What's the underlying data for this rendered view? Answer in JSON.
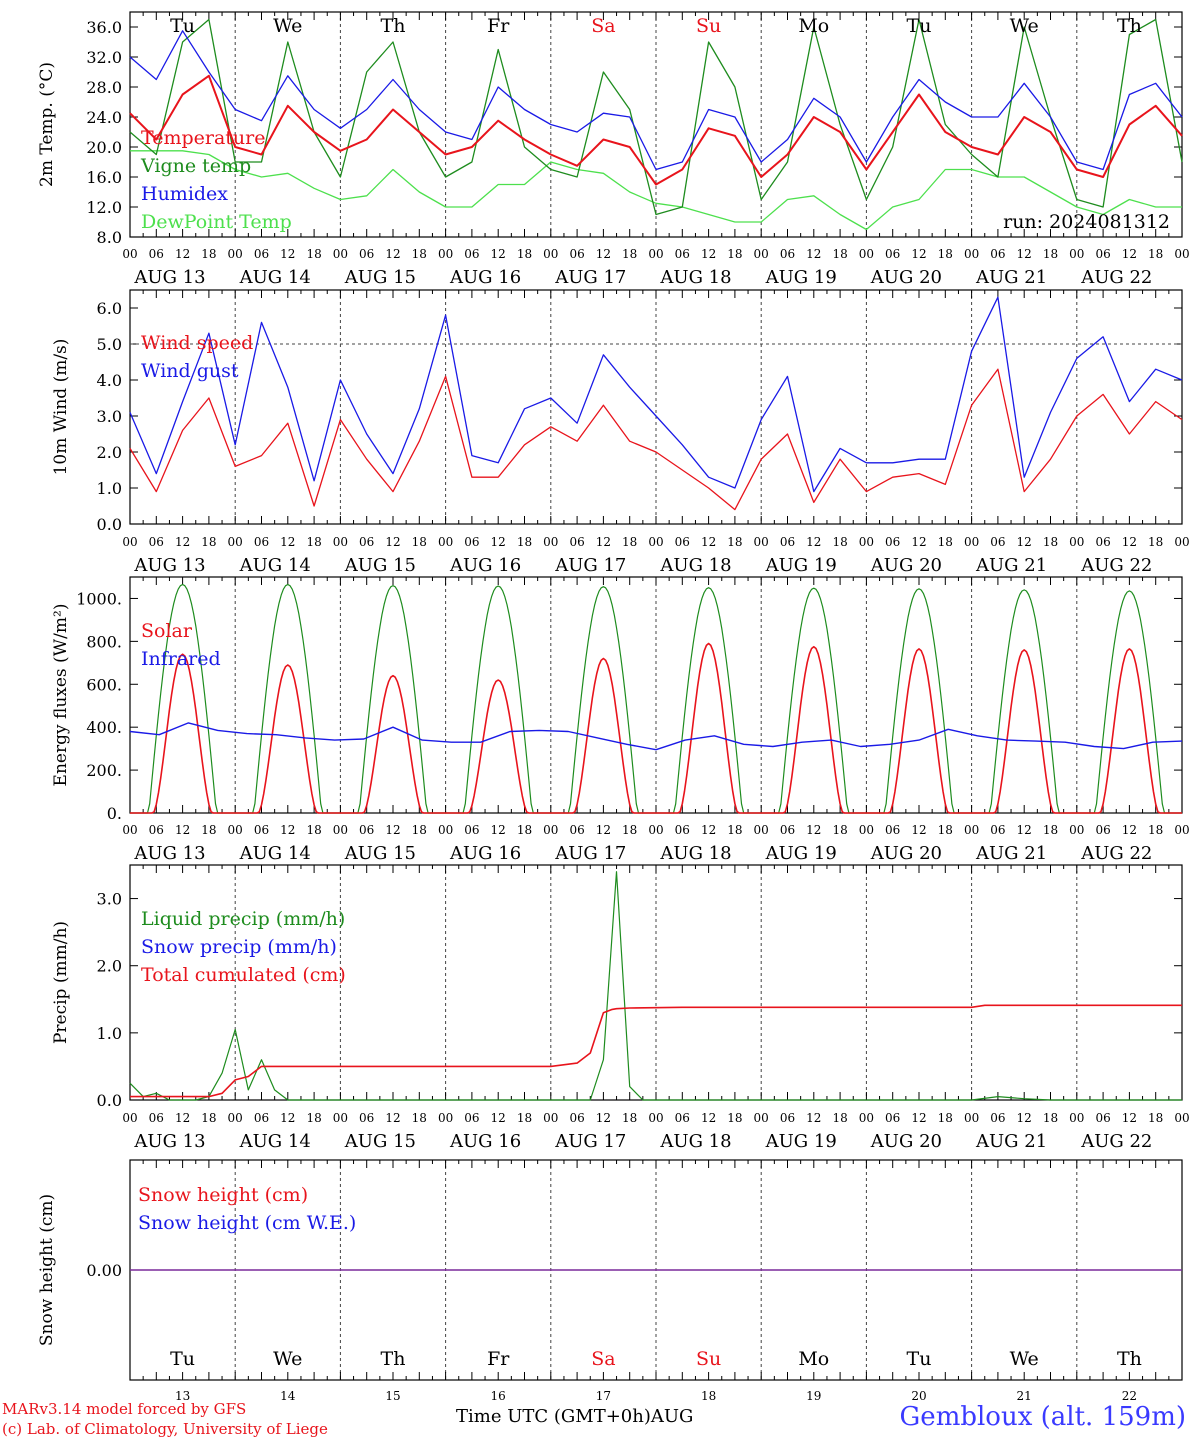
{
  "colors": {
    "red": "#e8141c",
    "green": "#1e8c1e",
    "blue": "#1a1ae6",
    "light_green": "#4de04d",
    "purple": "#7a2a9a",
    "axis": "#000000",
    "grid": "#444444"
  },
  "day_abbrev": [
    "Tu",
    "We",
    "Th",
    "Fr",
    "Sa",
    "Su",
    "Mo",
    "Tu",
    "We",
    "Th"
  ],
  "weekend_flags": [
    false,
    false,
    false,
    false,
    true,
    true,
    false,
    false,
    false,
    false
  ],
  "date_labels": [
    "AUG 13",
    "AUG 14",
    "AUG 15",
    "AUG 16",
    "AUG 17",
    "AUG 18",
    "AUG 19",
    "AUG 20",
    "AUG 21",
    "AUG 22"
  ],
  "hour_ticks": [
    "00",
    "06",
    "12",
    "18"
  ],
  "hour_end": "00",
  "bottom_day_numbers": [
    "13",
    "14",
    "15",
    "16",
    "17",
    "18",
    "19",
    "20",
    "21",
    "22"
  ],
  "footer": {
    "model_line": "MARv3.14 model forced by GFS",
    "lab_line": "(c) Lab. of Climatology, University of Liege",
    "axis_title": "Time UTC (GMT+0h)",
    "month": "AUG",
    "station": "Gembloux (alt. 159m)"
  },
  "chart_data": [
    {
      "type": "line",
      "ylabel": "2m Temp. (°C)",
      "ylim": [
        8,
        38
      ],
      "yticks": [
        "8.0",
        "12.0",
        "16.0",
        "20.0",
        "24.0",
        "28.0",
        "32.0",
        "36.0"
      ],
      "ytick_values": [
        8,
        12,
        16,
        20,
        24,
        28,
        32,
        36
      ],
      "annotation": "run: 2024081312",
      "x_hours": [
        0,
        6,
        12,
        18,
        24,
        30,
        36,
        42,
        48,
        54,
        60,
        66,
        72,
        78,
        84,
        90,
        96,
        102,
        108,
        114,
        120,
        126,
        132,
        138,
        144,
        150,
        156,
        162,
        168,
        174,
        180,
        186,
        192,
        198,
        204,
        210,
        216,
        222,
        228,
        234,
        240
      ],
      "series": [
        {
          "name": "Temperature",
          "color": "red",
          "values": [
            24.5,
            21,
            27,
            29.5,
            20,
            19,
            25.5,
            22,
            19.5,
            21,
            25,
            22,
            19,
            20,
            23.5,
            21,
            19,
            17.5,
            21,
            20,
            15,
            17,
            22.5,
            21.5,
            16,
            19,
            24,
            22,
            17,
            22,
            27,
            22,
            20,
            19,
            24,
            22,
            17,
            16,
            23,
            25.5,
            21.5
          ]
        },
        {
          "name": "Vigne temp",
          "color": "green",
          "values": [
            22,
            19,
            34,
            37,
            18,
            18,
            34,
            22,
            16,
            30,
            34,
            22,
            16,
            18,
            33,
            20,
            17,
            16,
            30,
            25,
            11,
            12,
            34,
            28,
            13,
            18,
            36,
            23,
            13,
            20,
            37,
            23,
            19,
            16,
            36,
            24,
            13,
            12,
            35,
            37,
            18
          ]
        },
        {
          "name": "Humidex",
          "color": "blue",
          "values": [
            32,
            29,
            35.5,
            30,
            25,
            23.5,
            29.5,
            25,
            22.5,
            25,
            29,
            25,
            22,
            21,
            28,
            25,
            23,
            22,
            24.5,
            24,
            17,
            18,
            25,
            24,
            18,
            21,
            26.5,
            24,
            18,
            24,
            29,
            26,
            24,
            24,
            28.5,
            24,
            18,
            17,
            27,
            28.5,
            24
          ]
        },
        {
          "name": "DewPoint Temp",
          "color": "light_green",
          "values": [
            19.5,
            19.5,
            19.5,
            19,
            17,
            16,
            16.5,
            14.5,
            13,
            13.5,
            17,
            14,
            12,
            12,
            15,
            15,
            18,
            17,
            16.5,
            14,
            12.5,
            12,
            11,
            10,
            10,
            13,
            13.5,
            11,
            9,
            12,
            13,
            17,
            17,
            16,
            16,
            14,
            12,
            11,
            13,
            12,
            12
          ]
        }
      ]
    },
    {
      "type": "line",
      "ylabel": "10m Wind (m/s)",
      "ylim": [
        0,
        6.5
      ],
      "yticks": [
        "0.0",
        "1.0",
        "2.0",
        "3.0",
        "4.0",
        "5.0",
        "6.0"
      ],
      "ytick_values": [
        0,
        1,
        2,
        3,
        4,
        5,
        6
      ],
      "ref_line": 5.0,
      "x_hours": [
        0,
        6,
        12,
        18,
        24,
        30,
        36,
        42,
        48,
        54,
        60,
        66,
        72,
        78,
        84,
        90,
        96,
        102,
        108,
        114,
        120,
        126,
        132,
        138,
        144,
        150,
        156,
        162,
        168,
        174,
        180,
        186,
        192,
        198,
        204,
        210,
        216,
        222,
        228,
        234,
        240
      ],
      "series": [
        {
          "name": "Wind speed",
          "color": "red",
          "values": [
            2.1,
            0.9,
            2.6,
            3.5,
            1.6,
            1.9,
            2.8,
            0.5,
            2.9,
            1.8,
            0.9,
            2.3,
            4.1,
            1.3,
            1.3,
            2.2,
            2.7,
            2.3,
            3.3,
            2.3,
            2.0,
            1.5,
            1.0,
            0.4,
            1.8,
            2.5,
            0.6,
            1.8,
            0.9,
            1.3,
            1.4,
            1.1,
            3.3,
            4.3,
            0.9,
            1.8,
            3.0,
            3.6,
            2.5,
            3.4,
            2.9
          ]
        },
        {
          "name": "Wind gust",
          "color": "blue",
          "values": [
            3.1,
            1.4,
            3.4,
            5.3,
            2.2,
            5.6,
            3.8,
            1.2,
            4.0,
            2.5,
            1.4,
            3.2,
            5.8,
            1.9,
            1.7,
            3.2,
            3.5,
            2.8,
            4.7,
            3.8,
            3.0,
            2.2,
            1.3,
            1.0,
            2.9,
            4.1,
            0.9,
            2.1,
            1.7,
            1.7,
            1.8,
            1.8,
            4.8,
            6.3,
            1.3,
            3.1,
            4.6,
            5.2,
            3.4,
            4.3,
            4.0
          ]
        }
      ]
    },
    {
      "type": "line",
      "ylabel": "Energy fluxes (W/m²)",
      "ylim": [
        0,
        1100
      ],
      "yticks": [
        "0.",
        "200.",
        "400.",
        "600.",
        "800.",
        "1000."
      ],
      "ytick_values": [
        0,
        200,
        400,
        600,
        800,
        1000
      ],
      "diurnal": {
        "toa_peaks": [
          1065,
          1065,
          1060,
          1058,
          1055,
          1050,
          1048,
          1045,
          1040,
          1035
        ],
        "solar_peaks": [
          740,
          690,
          640,
          620,
          720,
          790,
          775,
          765,
          760,
          765
        ]
      },
      "series": [
        {
          "name": "Solar",
          "color": "red",
          "values": "diurnal: solar_peaks"
        },
        {
          "name": "Infrared",
          "color": "blue",
          "values": [
            380,
            365,
            420,
            385,
            370,
            365,
            350,
            340,
            345,
            400,
            340,
            330,
            330,
            380,
            385,
            380,
            350,
            320,
            295,
            340,
            360,
            320,
            310,
            330,
            340,
            310,
            320,
            340,
            390,
            360,
            340,
            335,
            330,
            310,
            300,
            330,
            335
          ]
        }
      ]
    },
    {
      "type": "line",
      "ylabel": "Precip (mm/h)",
      "ylim": [
        0,
        3.5
      ],
      "yticks": [
        "0.0",
        "1.0",
        "2.0",
        "3.0"
      ],
      "ytick_values": [
        0,
        1,
        2,
        3
      ],
      "x_hours": [
        0,
        3,
        6,
        9,
        12,
        15,
        18,
        21,
        24,
        27,
        30,
        33,
        36,
        42,
        48,
        96,
        99,
        102,
        105,
        108,
        111,
        114,
        117,
        120,
        126,
        132,
        138,
        144,
        192,
        198,
        204,
        210,
        240
      ],
      "series": [
        {
          "name": "Liquid precip (mm/h)",
          "color": "green",
          "values": [
            0.25,
            0.05,
            0.1,
            0.0,
            0.0,
            0.0,
            0.05,
            0.4,
            1.05,
            0.15,
            0.6,
            0.15,
            0.0,
            0.0,
            0.0,
            0.0,
            0.0,
            0.0,
            0.0,
            0.6,
            3.4,
            0.2,
            0.0,
            0.0,
            0.0,
            0.0,
            0.0,
            0.0,
            0.0,
            0.05,
            0.02,
            0.0,
            0.0
          ]
        },
        {
          "name": "Snow precip (mm/h)",
          "color": "blue",
          "values": []
        },
        {
          "name": "Total cumulated (cm)",
          "color": "red",
          "x_hours": [
            0,
            18,
            21,
            24,
            27,
            30,
            36,
            48,
            96,
            102,
            105,
            108,
            110,
            111,
            114,
            126,
            192,
            195,
            240
          ],
          "values": [
            0.05,
            0.05,
            0.1,
            0.3,
            0.35,
            0.5,
            0.5,
            0.5,
            0.5,
            0.55,
            0.7,
            1.3,
            1.35,
            1.36,
            1.37,
            1.38,
            1.38,
            1.41,
            1.41
          ]
        }
      ]
    },
    {
      "type": "line",
      "ylabel": "Snow height (cm)",
      "ytick": "0.00",
      "ytick_value": 0,
      "series": [
        {
          "name": "Snow height (cm)",
          "color": "red",
          "values": [
            0,
            0
          ]
        },
        {
          "name": "Snow height (cm W.E.)",
          "color": "blue",
          "values": [
            0,
            0
          ]
        }
      ]
    }
  ]
}
